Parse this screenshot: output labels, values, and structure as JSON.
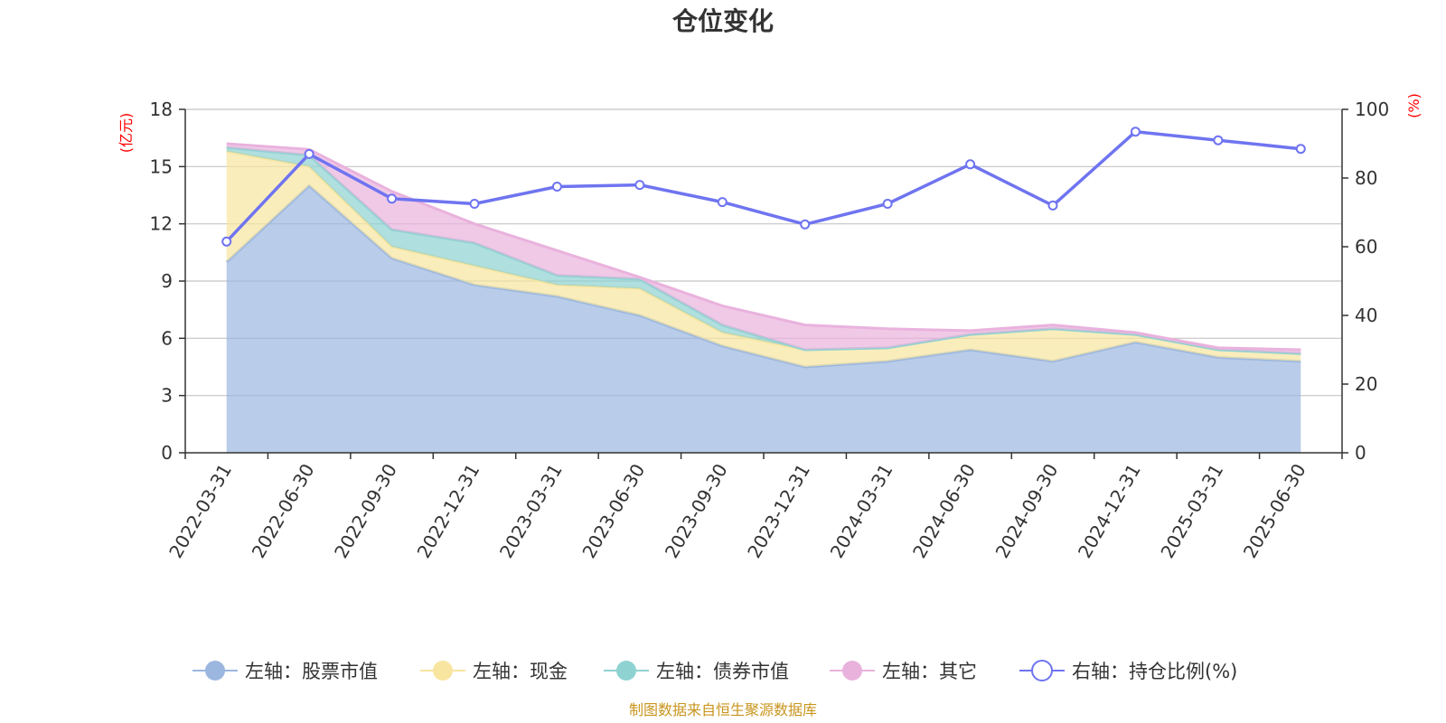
{
  "colors": {
    "stock": "#9bb7e0",
    "cash": "#f8e5a0",
    "bond": "#8fd2d2",
    "other": "#e9b2dd",
    "ratio": "#6f74f0",
    "unit": "#ff0000",
    "source": "#c8951e"
  },
  "chart_data": {
    "type": "area",
    "title": "仓位变化",
    "left_unit": "(亿元)",
    "right_unit": "(%)",
    "categories": [
      "2022-03-31",
      "2022-06-30",
      "2022-09-30",
      "2022-12-31",
      "2023-03-31",
      "2023-06-30",
      "2023-09-30",
      "2023-12-31",
      "2024-03-31",
      "2024-06-30",
      "2024-09-30",
      "2024-12-31",
      "2025-03-31",
      "2025-06-30"
    ],
    "y_left": {
      "min": 0,
      "max": 18,
      "ticks": [
        0,
        3,
        6,
        9,
        12,
        15,
        18
      ]
    },
    "y_right": {
      "min": 0,
      "max": 100,
      "ticks": [
        0,
        20,
        40,
        60,
        80,
        100
      ]
    },
    "grid": true,
    "legend_position": "bottom",
    "series": [
      {
        "name": "左轴：股票市值",
        "axis": "left",
        "kind": "stacked-area",
        "color_key": "stock",
        "values": [
          10.0,
          14.0,
          10.2,
          8.8,
          8.2,
          7.2,
          5.6,
          4.5,
          4.8,
          5.4,
          4.8,
          5.8,
          5.0,
          4.8
        ]
      },
      {
        "name": "左轴：现金",
        "axis": "left",
        "kind": "stacked-area",
        "color_key": "cash",
        "values": [
          5.8,
          1.0,
          0.6,
          1.0,
          0.6,
          1.4,
          0.7,
          0.9,
          0.7,
          0.8,
          1.7,
          0.4,
          0.4,
          0.4
        ]
      },
      {
        "name": "左轴：债券市值",
        "axis": "left",
        "kind": "stacked-area",
        "color_key": "bond",
        "values": [
          0.2,
          0.6,
          0.9,
          1.2,
          0.5,
          0.5,
          0.4,
          0,
          0,
          0,
          0,
          0,
          0,
          0
        ]
      },
      {
        "name": "左轴：其它",
        "axis": "left",
        "kind": "stacked-area",
        "color_key": "other",
        "values": [
          0.2,
          0.3,
          2.0,
          1.0,
          1.3,
          0.1,
          1.0,
          1.3,
          1.0,
          0.2,
          0.2,
          0.1,
          0.1,
          0.2
        ]
      },
      {
        "name": "右轴：持仓比例(%)",
        "axis": "right",
        "kind": "line",
        "color_key": "ratio",
        "values": [
          61.5,
          87.0,
          74.0,
          72.5,
          77.5,
          78.0,
          73.0,
          66.5,
          72.5,
          84.0,
          72.0,
          93.5,
          91.0,
          88.5
        ]
      }
    ],
    "source_note": "制图数据来自恒生聚源数据库"
  }
}
